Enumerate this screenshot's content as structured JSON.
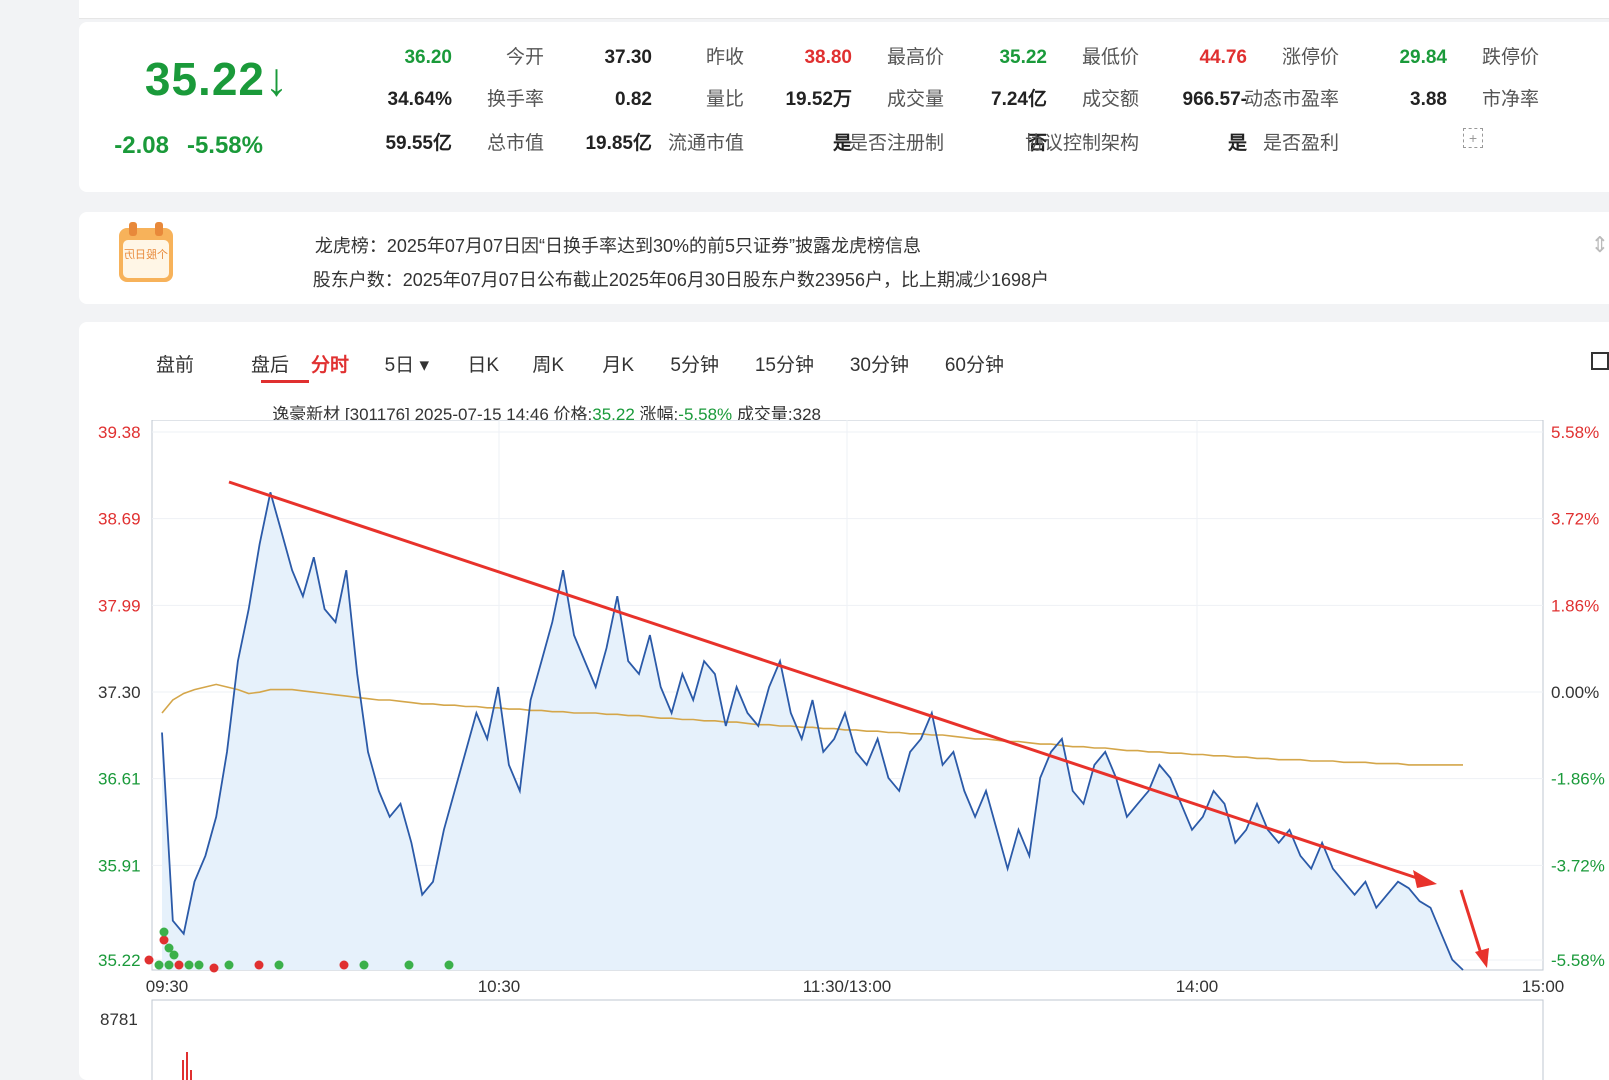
{
  "quote": {
    "price": "35.22",
    "arrow": "↓",
    "change": "-2.08",
    "change_pct": "-5.58%",
    "rows": [
      [
        {
          "label": "今开",
          "value": "36.20",
          "color": "green"
        },
        {
          "label": "昨收",
          "value": "37.30",
          "color": ""
        },
        {
          "label": "最高价",
          "value": "38.80",
          "color": "red"
        },
        {
          "label": "最低价",
          "value": "35.22",
          "color": "green"
        },
        {
          "label": "涨停价",
          "value": "44.76",
          "color": "red"
        },
        {
          "label": "跌停价",
          "value": "29.84",
          "color": "green"
        }
      ],
      [
        {
          "label": "换手率",
          "value": "34.64%",
          "color": ""
        },
        {
          "label": "量比",
          "value": "0.82",
          "color": ""
        },
        {
          "label": "成交量",
          "value": "19.52万",
          "color": ""
        },
        {
          "label": "成交额",
          "value": "7.24亿",
          "color": ""
        },
        {
          "label": "动态市盈率",
          "value": "-966.57",
          "color": ""
        },
        {
          "label": "市净率",
          "value": "3.88",
          "color": ""
        }
      ],
      [
        {
          "label": "总市值",
          "value": "59.55亿",
          "color": ""
        },
        {
          "label": "流通市值",
          "value": "19.85亿",
          "color": ""
        },
        {
          "label": "是否注册制",
          "value": "是",
          "color": ""
        },
        {
          "label": "协议控制架构",
          "value": "否",
          "color": ""
        },
        {
          "label": "是否盈利",
          "value": "是",
          "color": ""
        }
      ]
    ]
  },
  "notice": {
    "calendar_label": "个股日历",
    "line1": "龙虎榜：2025年07月07日因“日换手率达到30%的前5只证券”披露龙虎榜信息",
    "line2": "股东户数：2025年07月07日公布截止2025年06月30日股东户数23956户，比上期减少1698户"
  },
  "tabs": [
    {
      "label": "盘前",
      "active": false
    },
    {
      "label": "盘后",
      "active": false
    },
    {
      "label": "分时",
      "active": true
    },
    {
      "label": "5日",
      "active": false,
      "dropdown": true
    },
    {
      "label": "日K",
      "active": false
    },
    {
      "label": "周K",
      "active": false
    },
    {
      "label": "月K",
      "active": false
    },
    {
      "label": "5分钟",
      "active": false
    },
    {
      "label": "15分钟",
      "active": false
    },
    {
      "label": "30分钟",
      "active": false
    },
    {
      "label": "60分钟",
      "active": false
    }
  ],
  "info": {
    "stock": "逸豪新材 [301176]",
    "datetime": "2025-07-15 14:46",
    "price_label": "价格:",
    "price": "35.22",
    "chg_label": "涨幅:",
    "chg": "-5.58%",
    "vol_label": "成交量:",
    "vol": "328"
  },
  "chart_data": {
    "type": "line",
    "title": "",
    "x_ticks": [
      "09:30",
      "10:30",
      "11:30/13:00",
      "14:00",
      "15:00"
    ],
    "price_ticks": [
      "39.38",
      "38.69",
      "37.99",
      "37.30",
      "36.61",
      "35.91",
      "35.22"
    ],
    "pct_ticks": [
      "5.58%",
      "3.72%",
      "1.86%",
      "0.00%",
      "-1.86%",
      "-3.72%",
      "-5.58%"
    ],
    "ylim": [
      35.22,
      39.38
    ],
    "volume_max_label": "8781",
    "series": [
      {
        "name": "",
        "color": "#2b5aa8",
        "values": [
          37.05,
          35.6,
          35.5,
          35.9,
          36.1,
          36.4,
          36.9,
          37.6,
          38.0,
          38.5,
          38.9,
          38.6,
          38.3,
          38.1,
          38.4,
          38.0,
          37.9,
          38.3,
          37.5,
          36.9,
          36.6,
          36.4,
          36.5,
          36.2,
          35.8,
          35.9,
          36.3,
          36.6,
          36.9,
          37.2,
          37.0,
          37.4,
          36.8,
          36.6,
          37.3,
          37.6,
          37.9,
          38.3,
          37.8,
          37.6,
          37.4,
          37.7,
          38.1,
          37.6,
          37.5,
          37.8,
          37.4,
          37.2,
          37.5,
          37.3,
          37.6,
          37.5,
          37.1,
          37.4,
          37.2,
          37.1,
          37.4,
          37.6,
          37.2,
          37.0,
          37.3,
          36.9,
          37.0,
          37.2,
          36.9,
          36.8,
          37.0,
          36.7,
          36.6,
          36.9,
          37.0,
          37.2,
          36.8,
          36.9,
          36.6,
          36.4,
          36.6,
          36.3,
          36.0,
          36.3,
          36.1,
          36.7,
          36.9,
          37.0,
          36.6,
          36.5,
          36.8,
          36.9,
          36.7,
          36.4,
          36.5,
          36.6,
          36.8,
          36.7,
          36.5,
          36.3,
          36.4,
          36.6,
          36.5,
          36.2,
          36.3,
          36.5,
          36.3,
          36.2,
          36.3,
          36.1,
          36.0,
          36.2,
          36.0,
          35.9,
          35.8,
          35.9,
          35.7,
          35.8,
          35.9,
          35.85,
          35.75,
          35.7,
          35.5,
          35.3,
          35.22
        ]
      },
      {
        "name": "",
        "color": "#d4a64a",
        "values": [
          37.2,
          37.3,
          37.35,
          37.38,
          37.4,
          37.42,
          37.4,
          37.38,
          37.35,
          37.36,
          37.38,
          37.38,
          37.38,
          37.37,
          37.36,
          37.35,
          37.34,
          37.33,
          37.32,
          37.31,
          37.3,
          37.3,
          37.29,
          37.28,
          37.27,
          37.27,
          37.26,
          37.26,
          37.25,
          37.25,
          37.24,
          37.24,
          37.23,
          37.23,
          37.22,
          37.22,
          37.21,
          37.21,
          37.2,
          37.2,
          37.2,
          37.19,
          37.19,
          37.18,
          37.18,
          37.17,
          37.16,
          37.16,
          37.15,
          37.15,
          37.14,
          37.14,
          37.13,
          37.13,
          37.12,
          37.11,
          37.11,
          37.1,
          37.1,
          37.09,
          37.09,
          37.08,
          37.08,
          37.07,
          37.07,
          37.06,
          37.06,
          37.05,
          37.05,
          37.04,
          37.04,
          37.03,
          37.03,
          37.02,
          37.01,
          37.0,
          37.0,
          36.99,
          36.98,
          36.98,
          36.97,
          36.96,
          36.96,
          36.95,
          36.94,
          36.94,
          36.93,
          36.93,
          36.92,
          36.91,
          36.91,
          36.9,
          36.9,
          36.89,
          36.89,
          36.88,
          36.88,
          36.87,
          36.87,
          36.86,
          36.86,
          36.85,
          36.85,
          36.84,
          36.84,
          36.84,
          36.83,
          36.83,
          36.83,
          36.82,
          36.82,
          36.82,
          36.81,
          36.81,
          36.81,
          36.8,
          36.8,
          36.8,
          36.8,
          36.8,
          36.8
        ]
      }
    ]
  },
  "colors": {
    "up": "#e03030",
    "down": "#1a9a3a",
    "line": "#2b5aa8",
    "avg": "#d4a64a",
    "area": "#e6f1fb",
    "annotation": "#e8322b"
  },
  "icons": {
    "down_arrow": "down-arrow-icon",
    "fullscreen": "fullscreen-icon",
    "calendar": "calendar-icon"
  }
}
